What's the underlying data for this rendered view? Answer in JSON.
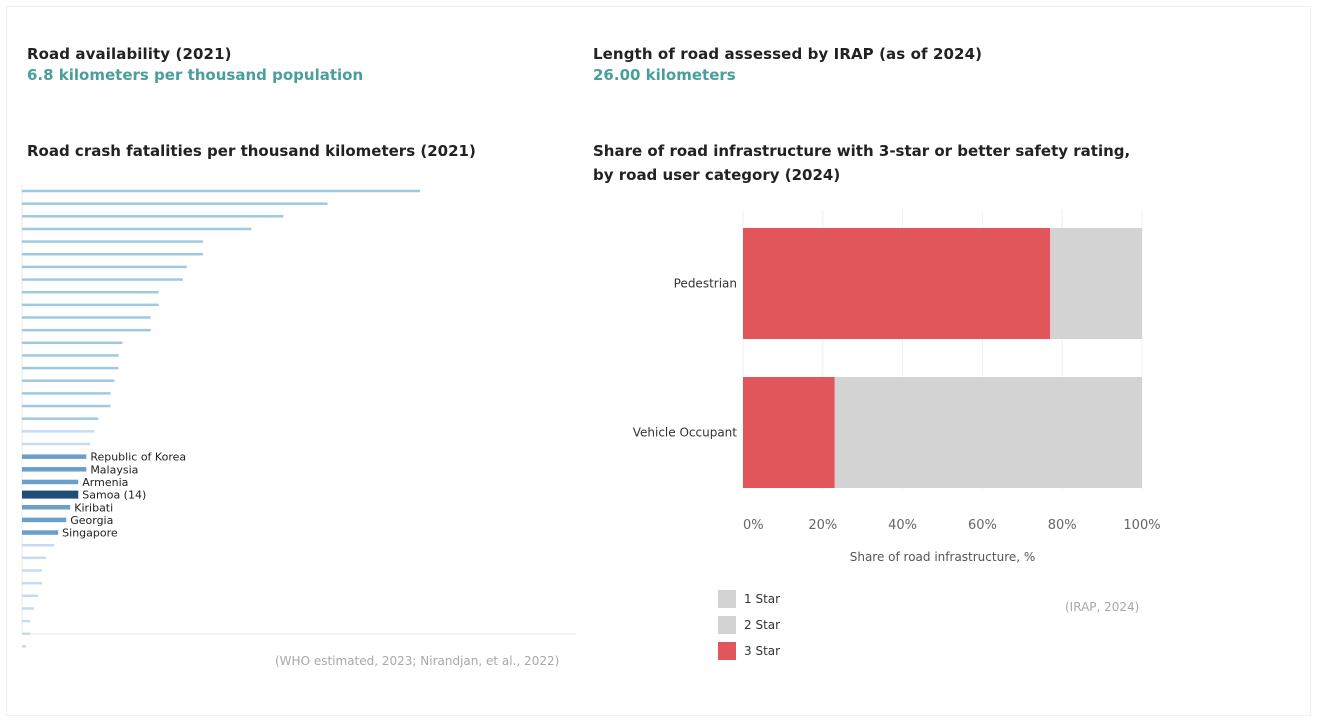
{
  "stats": [
    {
      "label": "Road availability (2021)",
      "value": "6.8 kilometers per thousand population"
    },
    {
      "label": "Length of road assessed by IRAP (as of 2024)",
      "value": "26.00 kilometers"
    }
  ],
  "left_chart": {
    "title": "Road crash fatalities per thousand kilometers (2021)",
    "source": "(WHO estimated, 2023; Nirandjan, et al., 2022)"
  },
  "right_chart": {
    "title_line1": "Share of road infrastructure with 3-star or better safety rating,",
    "title_line2": "by road user category (2024)",
    "source": "(IRAP, 2024)",
    "legend": [
      {
        "label": "1 Star",
        "color": "#d3d3d3"
      },
      {
        "label": "2 Star",
        "color": "#d3d3d3"
      },
      {
        "label": "3 Star",
        "color": "#e0565b"
      }
    ]
  },
  "chart_data": [
    {
      "type": "bar",
      "orientation": "horizontal",
      "title": "Road crash fatalities per thousand kilometers (2021)",
      "values": [
        99,
        76,
        65,
        57,
        45,
        45,
        41,
        40,
        34,
        34,
        32,
        32,
        25,
        24,
        24,
        23,
        22,
        22,
        19,
        18,
        17,
        16,
        16,
        14,
        14,
        12,
        11,
        9,
        8,
        6,
        5,
        5,
        4,
        3,
        2,
        2,
        1
      ],
      "labels": {
        "21": "Republic of Korea",
        "22": "Malaysia",
        "23": "Armenia",
        "24": "Samoa (14)",
        "25": "Kiribati",
        "26": "Georgia",
        "27": "Singapore"
      },
      "highlight_index": 24,
      "colors": {
        "default": "#9ecae1",
        "light": "#c6dbef",
        "near": "#6a9fcb",
        "highlight": "#1f4e79"
      }
    },
    {
      "type": "bar",
      "orientation": "horizontal",
      "stacked": true,
      "title": "Share of road infrastructure with 3-star or better safety rating, by road user category (2024)",
      "categories": [
        "Pedestrian",
        "Vehicle Occupant"
      ],
      "series": [
        {
          "name": "3 Star",
          "values": [
            77,
            23
          ]
        },
        {
          "name": "2 Star",
          "values": [
            0,
            0
          ]
        },
        {
          "name": "1 Star",
          "values": [
            23,
            77
          ]
        }
      ],
      "xlabel": "Share of road infrastructure, %",
      "xlim": [
        0,
        100
      ],
      "xticks": [
        "0%",
        "20%",
        "40%",
        "60%",
        "80%",
        "100%"
      ],
      "grid": true
    }
  ]
}
